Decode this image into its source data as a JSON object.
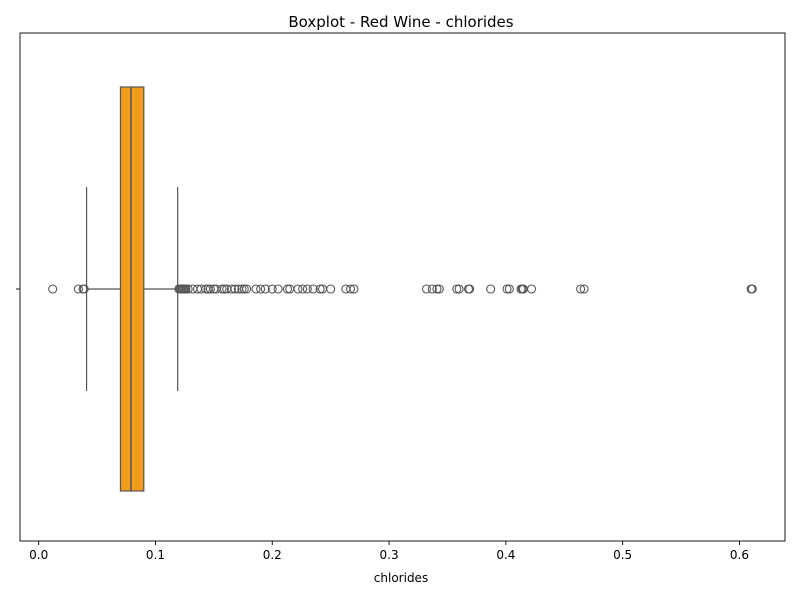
{
  "chart_data": {
    "type": "box",
    "title": "Boxplot - Red Wine - chlorides",
    "xlabel": "chlorides",
    "ylabel": "",
    "orientation": "horizontal",
    "xlim": [
      -0.016,
      0.639
    ],
    "xticks": [
      0.0,
      0.1,
      0.2,
      0.3,
      0.4,
      0.5,
      0.6
    ],
    "xtick_labels": [
      "0.0",
      "0.1",
      "0.2",
      "0.3",
      "0.4",
      "0.5",
      "0.6"
    ],
    "yticks": [
      ""
    ],
    "grid": false,
    "box": {
      "q1": 0.07,
      "median": 0.079,
      "q3": 0.09,
      "whisker_low": 0.041,
      "whisker_high": 0.119
    },
    "outliers": [
      0.012,
      0.034,
      0.038,
      0.039,
      0.12,
      0.121,
      0.122,
      0.123,
      0.124,
      0.125,
      0.126,
      0.128,
      0.132,
      0.136,
      0.139,
      0.143,
      0.145,
      0.147,
      0.15,
      0.152,
      0.157,
      0.159,
      0.161,
      0.165,
      0.168,
      0.171,
      0.174,
      0.176,
      0.178,
      0.186,
      0.19,
      0.194,
      0.2,
      0.205,
      0.213,
      0.215,
      0.222,
      0.226,
      0.23,
      0.235,
      0.241,
      0.243,
      0.25,
      0.263,
      0.267,
      0.27,
      0.332,
      0.337,
      0.341,
      0.343,
      0.358,
      0.36,
      0.368,
      0.369,
      0.387,
      0.401,
      0.403,
      0.413,
      0.414,
      0.415,
      0.422,
      0.464,
      0.467,
      0.61,
      0.611
    ],
    "colors": {
      "box_fill": "#f29c1c",
      "line": "#555555",
      "axis": "#000000"
    }
  }
}
